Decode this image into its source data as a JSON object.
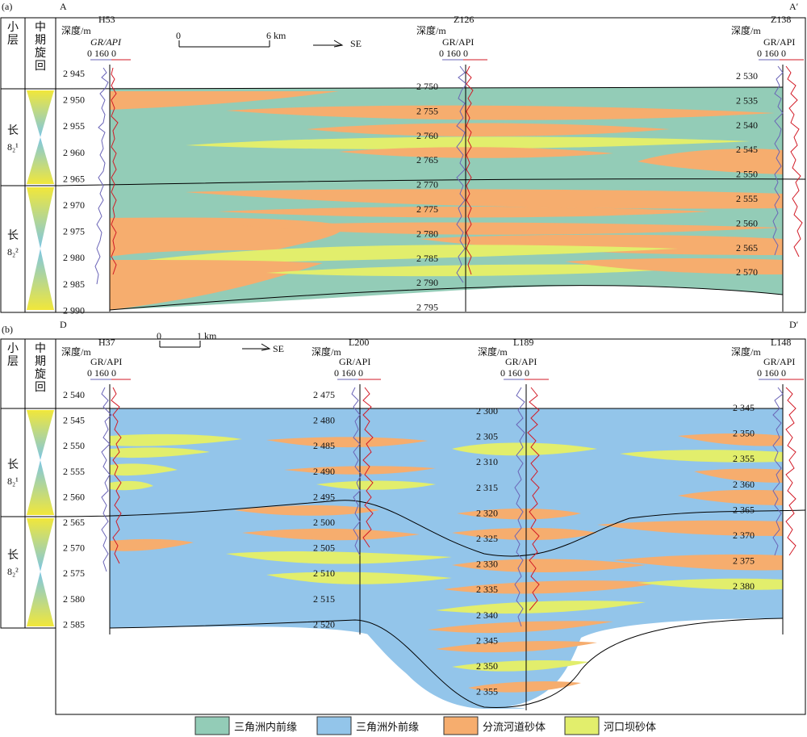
{
  "colors": {
    "inner_front": "#93ccb7",
    "outer_front": "#93c5ea",
    "channel_sand": "#f6ad6e",
    "mouth_bar": "#e2ee6c",
    "gr_curve": "#6a64b7",
    "res_curve": "#d21a26"
  },
  "common": {
    "small_layer": "小层",
    "mid_cycle": "中期旋回",
    "depth_label": "深度/m",
    "curve_label": "GR/API",
    "scale_0": "0",
    "scale_160": "160",
    "scale_0b": "0",
    "direction": "SE"
  },
  "panel_a": {
    "tag": "(a)",
    "start": "A",
    "end": "A′",
    "scale_left": "0",
    "scale_right": "6 km",
    "layer_upper": "长",
    "layer_upper_sub": "8₂¹",
    "layer_lower": "长",
    "layer_lower_sub": "8₂²",
    "wells": [
      {
        "name": "H53",
        "depths": [
          "2 945",
          "2 950",
          "2 955",
          "2 960",
          "2 965",
          "2 970",
          "2 975",
          "2 980",
          "2 985",
          "2 990"
        ]
      },
      {
        "name": "Z126",
        "depths": [
          "2 750",
          "2 755",
          "2 760",
          "2 765",
          "2 770",
          "2 775",
          "2 780",
          "2 785",
          "2 790",
          "2 795"
        ]
      },
      {
        "name": "Z138",
        "depths": [
          "2 530",
          "2 535",
          "2 540",
          "2 545",
          "2 550",
          "2 555",
          "2 560",
          "2 565",
          "2 570"
        ]
      }
    ]
  },
  "panel_b": {
    "tag": "(b)",
    "start": "D",
    "end": "D′",
    "scale_left": "0",
    "scale_right": "1 km",
    "layer_upper": "长",
    "layer_upper_sub": "8₂¹",
    "layer_lower": "长",
    "layer_lower_sub": "8₂²",
    "wells": [
      {
        "name": "H37",
        "depths": [
          "2 540",
          "2 545",
          "2 550",
          "2 555",
          "2 560",
          "2 565",
          "2 570",
          "2 575",
          "2 580",
          "2 585"
        ]
      },
      {
        "name": "L200",
        "depths": [
          "2 475",
          "2 480",
          "2 485",
          "2 490",
          "2 495",
          "2 500",
          "2 505",
          "2 510",
          "2 515",
          "2 520"
        ]
      },
      {
        "name": "L189",
        "depths": [
          "2 300",
          "2 305",
          "2 310",
          "2 315",
          "2 320",
          "2 325",
          "2 330",
          "2 335",
          "2 340",
          "2 345",
          "2 350",
          "2 355"
        ]
      },
      {
        "name": "L148",
        "depths": [
          "2 345",
          "2 350",
          "2 355",
          "2 360",
          "2 365",
          "2 370",
          "2 375",
          "2 380"
        ]
      }
    ]
  },
  "legend": [
    {
      "label": "三角洲内前缘",
      "color": "#93ccb7"
    },
    {
      "label": "三角洲外前缘",
      "color": "#93c5ea"
    },
    {
      "label": "分流河道砂体",
      "color": "#f6ad6e"
    },
    {
      "label": "河口坝砂体",
      "color": "#e2ee6c"
    }
  ]
}
